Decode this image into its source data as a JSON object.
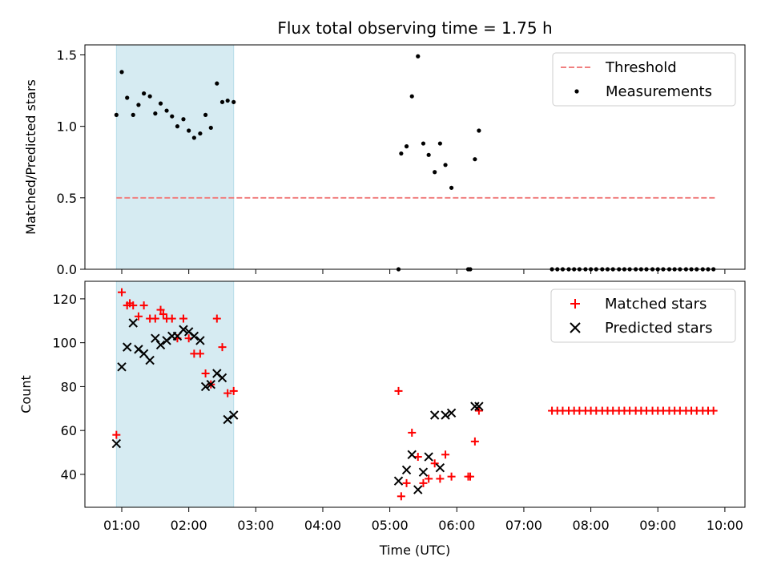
{
  "chart_data": [
    {
      "type": "scatter",
      "title": "Flux total observing time = 1.75 h",
      "xlabel": "",
      "ylabel": "Matched/Predicted stars",
      "xlim": [
        0.45,
        10.3
      ],
      "ylim": [
        0,
        1.57
      ],
      "yticks": [
        0.0,
        0.5,
        1.0,
        1.5
      ],
      "ytick_labels": [
        "0.0",
        "0.5",
        "1.0",
        "1.5"
      ],
      "highlight_span": [
        0.92,
        2.67
      ],
      "highlight_color": "#add8e6",
      "threshold": {
        "name": "Threshold",
        "y": 0.5,
        "x": [
          0.92,
          9.85
        ],
        "color": "#f08080"
      },
      "legend": {
        "position": "top-right",
        "entries": [
          "Threshold",
          "Measurements"
        ]
      },
      "series": [
        {
          "name": "Measurements",
          "marker": "dot",
          "color": "#000000",
          "x": [
            0.92,
            1.0,
            1.08,
            1.17,
            1.25,
            1.33,
            1.42,
            1.5,
            1.58,
            1.67,
            1.75,
            1.83,
            1.92,
            2.0,
            2.08,
            2.17,
            2.25,
            2.33,
            2.42,
            2.5,
            2.58,
            2.67,
            5.13,
            5.17,
            5.25,
            5.33,
            5.42,
            5.5,
            5.58,
            5.67,
            5.75,
            5.83,
            5.92,
            6.17,
            6.2,
            6.27,
            6.33,
            7.42,
            7.5,
            7.58,
            7.67,
            7.75,
            7.83,
            7.92,
            8.0,
            8.08,
            8.17,
            8.25,
            8.33,
            8.42,
            8.5,
            8.58,
            8.67,
            8.75,
            8.83,
            8.92,
            9.0,
            9.08,
            9.17,
            9.25,
            9.33,
            9.42,
            9.5,
            9.58,
            9.67,
            9.75,
            9.83
          ],
          "y": [
            1.08,
            1.38,
            1.2,
            1.08,
            1.15,
            1.23,
            1.21,
            1.09,
            1.16,
            1.11,
            1.07,
            1.0,
            1.05,
            0.97,
            0.92,
            0.95,
            1.08,
            0.99,
            1.3,
            1.17,
            1.18,
            1.17,
            0.0,
            0.81,
            0.86,
            1.21,
            1.49,
            0.88,
            0.8,
            0.68,
            0.88,
            0.73,
            0.57,
            0.0,
            0.0,
            0.77,
            0.97,
            0,
            0,
            0,
            0,
            0,
            0,
            0,
            0,
            0,
            0,
            0,
            0,
            0,
            0,
            0,
            0,
            0,
            0,
            0,
            0,
            0,
            0,
            0,
            0,
            0,
            0,
            0,
            0,
            0,
            0
          ]
        }
      ]
    },
    {
      "type": "scatter",
      "title": "",
      "xlabel": "Time (UTC)",
      "ylabel": "Count",
      "xlim": [
        0.45,
        10.3
      ],
      "ylim": [
        25,
        128
      ],
      "xticks": [
        1,
        2,
        3,
        4,
        5,
        6,
        7,
        8,
        9,
        10
      ],
      "xtick_labels": [
        "01:00",
        "02:00",
        "03:00",
        "04:00",
        "05:00",
        "06:00",
        "07:00",
        "08:00",
        "09:00",
        "10:00"
      ],
      "yticks": [
        40,
        60,
        80,
        100,
        120
      ],
      "ytick_labels": [
        "40",
        "60",
        "80",
        "100",
        "120"
      ],
      "highlight_span": [
        0.92,
        2.67
      ],
      "highlight_color": "#add8e6",
      "legend": {
        "position": "top-right",
        "entries": [
          "Matched stars",
          "Predicted stars"
        ]
      },
      "series": [
        {
          "name": "Matched stars",
          "marker": "plus",
          "color": "#ff0000",
          "x": [
            0.92,
            1.0,
            1.08,
            1.12,
            1.17,
            1.25,
            1.33,
            1.42,
            1.5,
            1.58,
            1.62,
            1.67,
            1.75,
            1.83,
            1.92,
            2.0,
            2.08,
            2.17,
            2.25,
            2.33,
            2.42,
            2.5,
            2.58,
            2.67,
            5.13,
            5.17,
            5.25,
            5.33,
            5.42,
            5.5,
            5.58,
            5.67,
            5.75,
            5.83,
            5.92,
            6.17,
            6.2,
            6.27,
            6.33,
            7.42,
            7.5,
            7.58,
            7.67,
            7.75,
            7.83,
            7.92,
            8.0,
            8.08,
            8.17,
            8.25,
            8.33,
            8.42,
            8.5,
            8.58,
            8.67,
            8.75,
            8.83,
            8.92,
            9.0,
            9.08,
            9.17,
            9.25,
            9.33,
            9.42,
            9.5,
            9.58,
            9.67,
            9.75,
            9.83
          ],
          "y": [
            58,
            123,
            117,
            118,
            117,
            112,
            117,
            111,
            111,
            115,
            113,
            111,
            111,
            102,
            111,
            102,
            95,
            95,
            86,
            81,
            111,
            98,
            77,
            78,
            78,
            30,
            36,
            59,
            48,
            36,
            38,
            45,
            38,
            49,
            39,
            39,
            39,
            55,
            69,
            69,
            69,
            69,
            69,
            69,
            69,
            69,
            69,
            69,
            69,
            69,
            69,
            69,
            69,
            69,
            69,
            69,
            69,
            69,
            69,
            69,
            69,
            69,
            69,
            69,
            69,
            69,
            69,
            69,
            69
          ]
        },
        {
          "name": "Predicted stars",
          "marker": "x",
          "color": "#000000",
          "x": [
            0.92,
            1.0,
            1.08,
            1.17,
            1.25,
            1.33,
            1.42,
            1.5,
            1.58,
            1.67,
            1.75,
            1.83,
            1.92,
            2.0,
            2.08,
            2.17,
            2.25,
            2.33,
            2.42,
            2.5,
            2.58,
            2.67,
            5.13,
            5.25,
            5.33,
            5.42,
            5.5,
            5.58,
            5.67,
            5.75,
            5.83,
            5.92,
            6.27,
            6.33
          ],
          "y": [
            54,
            89,
            98,
            109,
            97,
            95,
            92,
            102,
            99,
            101,
            103,
            103,
            106,
            105,
            103,
            101,
            80,
            81,
            86,
            84,
            65,
            67,
            37,
            42,
            49,
            33,
            41,
            48,
            67,
            43,
            67,
            68,
            71,
            71
          ]
        }
      ]
    }
  ]
}
